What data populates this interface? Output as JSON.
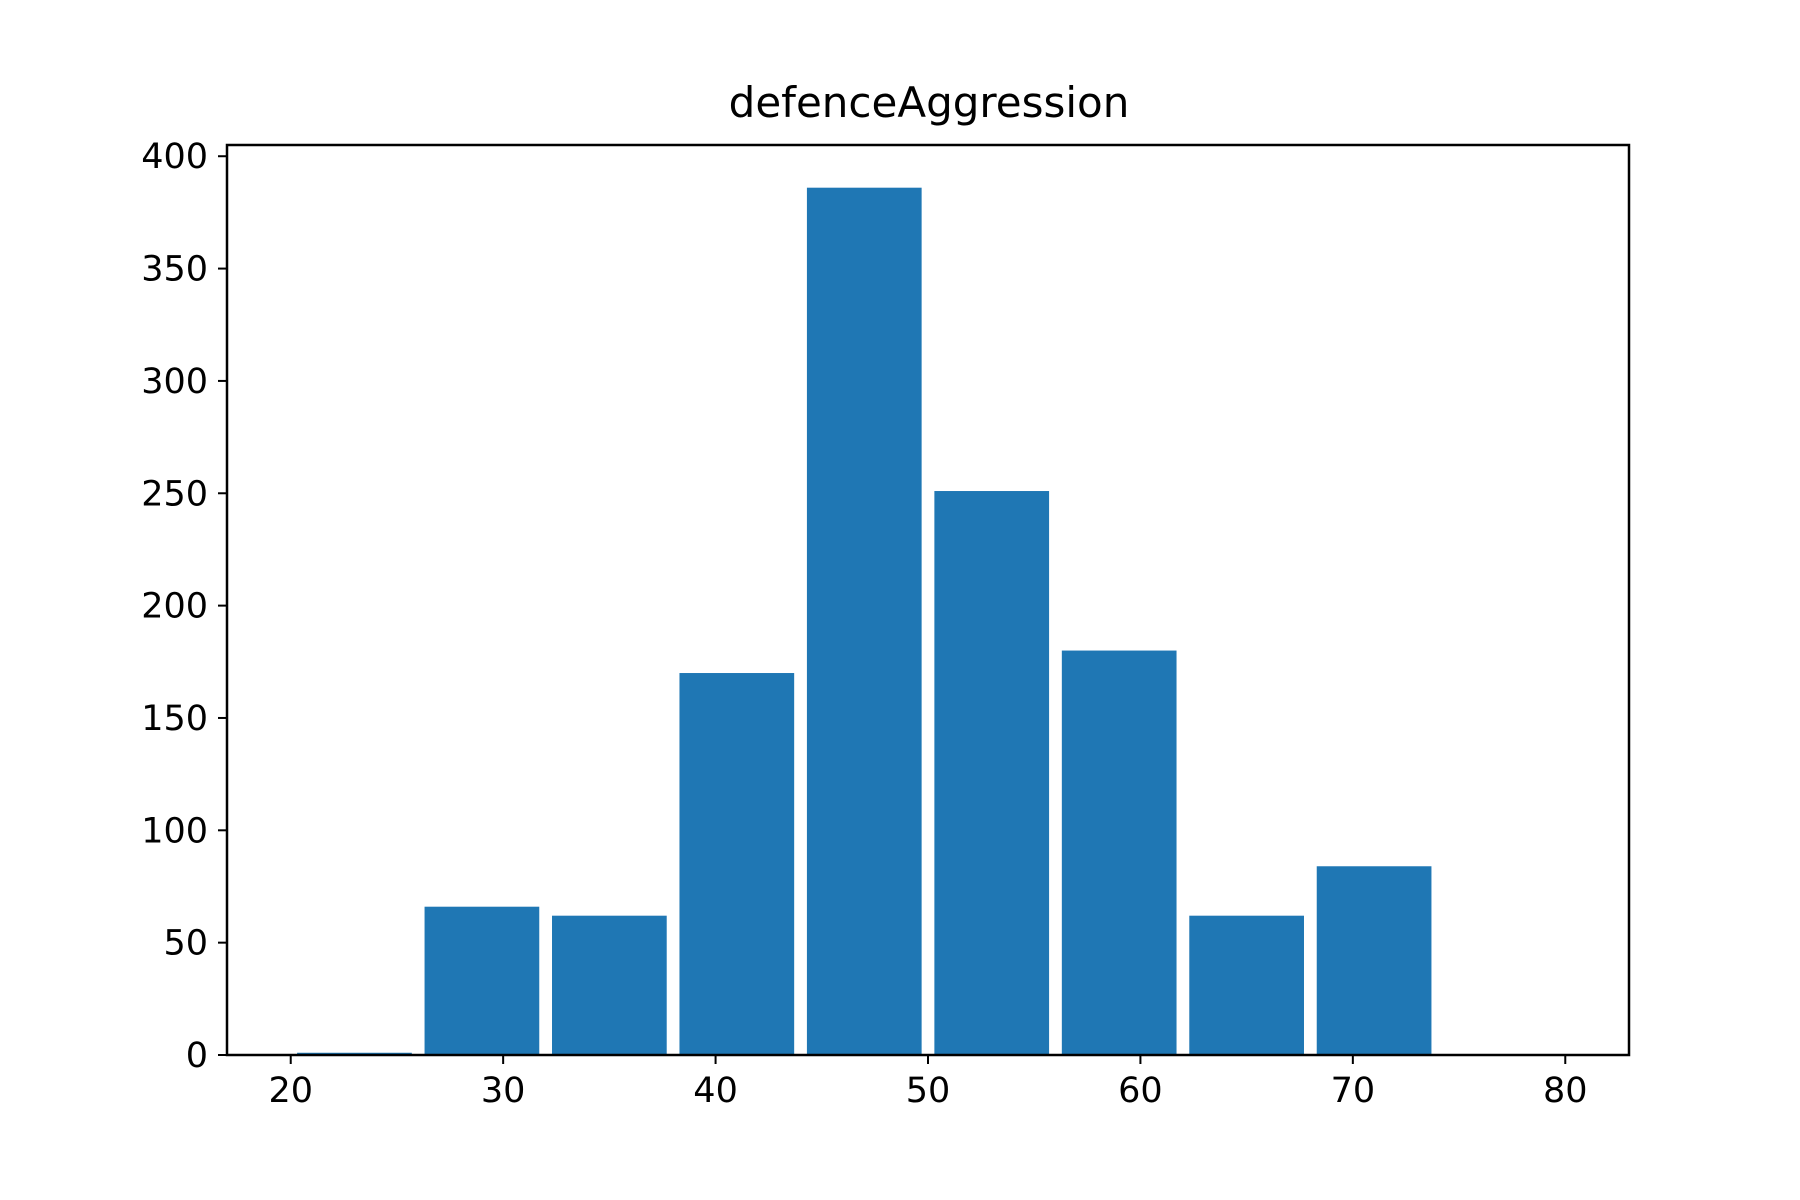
{
  "chart_data": {
    "type": "bar",
    "title": "defenceAggression",
    "xlabel": "",
    "ylabel": "",
    "bin_edges": [
      20,
      26,
      32,
      38,
      44,
      50,
      56,
      62,
      68,
      74,
      80
    ],
    "values": [
      1,
      66,
      62,
      170,
      386,
      251,
      180,
      62,
      84,
      0
    ],
    "xlim": [
      17,
      83
    ],
    "ylim": [
      0,
      405
    ],
    "xticks": [
      20,
      30,
      40,
      50,
      60,
      70,
      80
    ],
    "yticks": [
      0,
      50,
      100,
      150,
      200,
      250,
      300,
      350,
      400
    ],
    "grid": false,
    "legend": "none",
    "bar_color": "#1f77b4"
  }
}
